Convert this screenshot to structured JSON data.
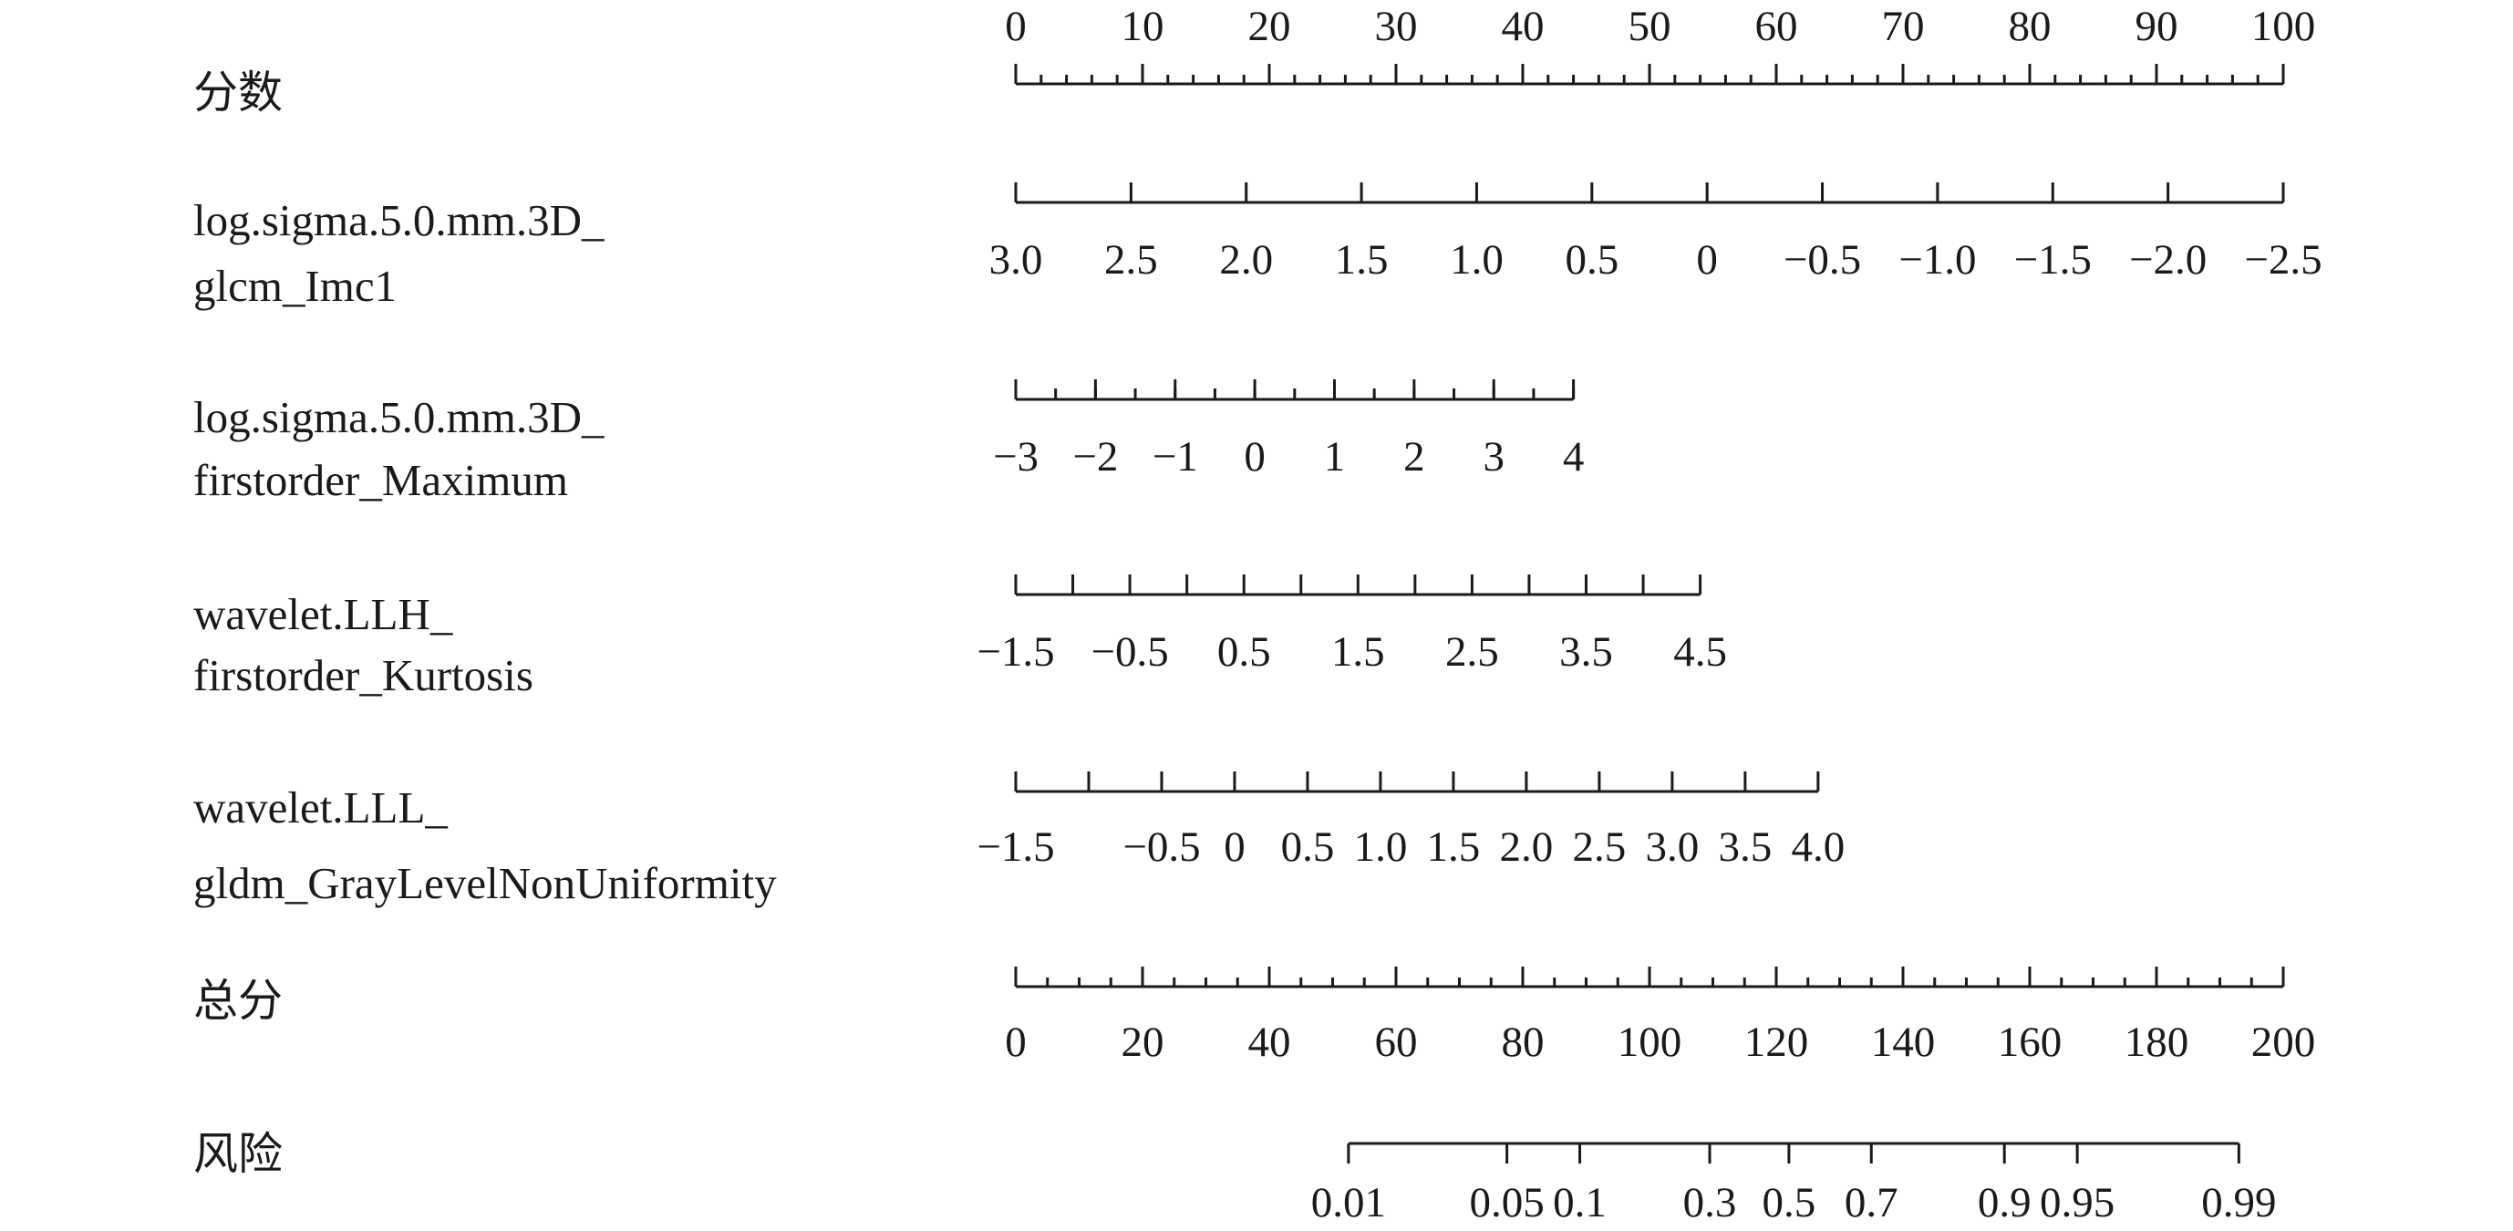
{
  "chart_data": {
    "type": "nomogram",
    "rows": [
      {
        "label_lines": [
          "分数"
        ],
        "ticks": [
          {
            "value": 0,
            "label": "0"
          },
          {
            "value": 10,
            "label": "10"
          },
          {
            "value": 20,
            "label": "20"
          },
          {
            "value": 30,
            "label": "30"
          },
          {
            "value": 40,
            "label": "40"
          },
          {
            "value": 50,
            "label": "50"
          },
          {
            "value": 60,
            "label": "60"
          },
          {
            "value": 70,
            "label": "70"
          },
          {
            "value": 80,
            "label": "80"
          },
          {
            "value": 90,
            "label": "90"
          },
          {
            "value": 100,
            "label": "100"
          }
        ],
        "minor_step": 2,
        "labels_position": "above"
      },
      {
        "label_lines": [
          "log.sigma.5.0.mm.3D_",
          "glcm_Imc1"
        ],
        "ticks": [
          {
            "value": 3.0,
            "label": "3.0"
          },
          {
            "value": 2.5,
            "label": "2.5"
          },
          {
            "value": 2.0,
            "label": "2.0"
          },
          {
            "value": 1.5,
            "label": "1.5"
          },
          {
            "value": 1.0,
            "label": "1.0"
          },
          {
            "value": 0.5,
            "label": "0.5"
          },
          {
            "value": 0,
            "label": "0"
          },
          {
            "value": -0.5,
            "label": "−0.5"
          },
          {
            "value": -1.0,
            "label": "−1.0"
          },
          {
            "value": -1.5,
            "label": "−1.5"
          },
          {
            "value": -2.0,
            "label": "−2.0"
          },
          {
            "value": -2.5,
            "label": "−2.5"
          }
        ],
        "minor_step": 0,
        "labels_position": "below"
      },
      {
        "label_lines": [
          "log.sigma.5.0.mm.3D_",
          "firstorder_Maximum"
        ],
        "ticks": [
          {
            "value": -3,
            "label": "−3"
          },
          {
            "value": -2,
            "label": "−2"
          },
          {
            "value": -1,
            "label": "−1"
          },
          {
            "value": 0,
            "label": "0"
          },
          {
            "value": 1,
            "label": "1"
          },
          {
            "value": 2,
            "label": "2"
          },
          {
            "value": 3,
            "label": "3"
          },
          {
            "value": 4,
            "label": "4"
          }
        ],
        "minor_step": 0.5,
        "labels_position": "below"
      },
      {
        "label_lines": [
          "wavelet.LLH_",
          "firstorder_Kurtosis"
        ],
        "ticks": [
          {
            "value": -1.5,
            "label": "−1.5"
          },
          {
            "value": -1.0,
            "label": ""
          },
          {
            "value": -0.5,
            "label": "−0.5"
          },
          {
            "value": 0,
            "label": ""
          },
          {
            "value": 0.5,
            "label": "0.5"
          },
          {
            "value": 1.0,
            "label": ""
          },
          {
            "value": 1.5,
            "label": "1.5"
          },
          {
            "value": 2.0,
            "label": ""
          },
          {
            "value": 2.5,
            "label": "2.5"
          },
          {
            "value": 3.0,
            "label": ""
          },
          {
            "value": 3.5,
            "label": "3.5"
          },
          {
            "value": 4.0,
            "label": ""
          },
          {
            "value": 4.5,
            "label": "4.5"
          }
        ],
        "minor_step": 0,
        "labels_position": "below"
      },
      {
        "label_lines": [
          "wavelet.LLL_",
          "gldm_GrayLevelNonUniformity"
        ],
        "ticks": [
          {
            "value": -1.5,
            "label": "−1.5"
          },
          {
            "value": -1.0,
            "label": ""
          },
          {
            "value": -0.5,
            "label": "−0.5"
          },
          {
            "value": 0,
            "label": "0"
          },
          {
            "value": 0.5,
            "label": "0.5"
          },
          {
            "value": 1.0,
            "label": "1.0"
          },
          {
            "value": 1.5,
            "label": "1.5"
          },
          {
            "value": 2.0,
            "label": "2.0"
          },
          {
            "value": 2.5,
            "label": "2.5"
          },
          {
            "value": 3.0,
            "label": "3.0"
          },
          {
            "value": 3.5,
            "label": "3.5"
          },
          {
            "value": 4.0,
            "label": "4.0"
          }
        ],
        "minor_step": 0,
        "labels_position": "below"
      },
      {
        "label_lines": [
          "总分"
        ],
        "ticks": [
          {
            "value": 0,
            "label": "0"
          },
          {
            "value": 20,
            "label": "20"
          },
          {
            "value": 40,
            "label": "40"
          },
          {
            "value": 60,
            "label": "60"
          },
          {
            "value": 80,
            "label": "80"
          },
          {
            "value": 100,
            "label": "100"
          },
          {
            "value": 120,
            "label": "120"
          },
          {
            "value": 140,
            "label": "140"
          },
          {
            "value": 160,
            "label": "160"
          },
          {
            "value": 180,
            "label": "180"
          },
          {
            "value": 200,
            "label": "200"
          }
        ],
        "minor_step": 5,
        "labels_position": "below"
      },
      {
        "label_lines": [
          "风险"
        ],
        "ticks": [
          {
            "value": 0.01,
            "total_points": 52.5,
            "label": "0.01"
          },
          {
            "value": 0.05,
            "total_points": 77.5,
            "label": "0.05"
          },
          {
            "value": 0.1,
            "total_points": 89,
            "label": "0.1"
          },
          {
            "value": 0.3,
            "total_points": 109.5,
            "label": "0.3"
          },
          {
            "value": 0.5,
            "total_points": 122,
            "label": "0.5"
          },
          {
            "value": 0.7,
            "total_points": 135,
            "label": "0.7"
          },
          {
            "value": 0.9,
            "total_points": 156,
            "label": "0.9"
          },
          {
            "value": 0.95,
            "total_points": 167.5,
            "label": "0.95"
          },
          {
            "value": 0.99,
            "total_points": 193,
            "label": "0.99"
          }
        ],
        "minor_step": 0,
        "labels_position": "below"
      }
    ]
  }
}
